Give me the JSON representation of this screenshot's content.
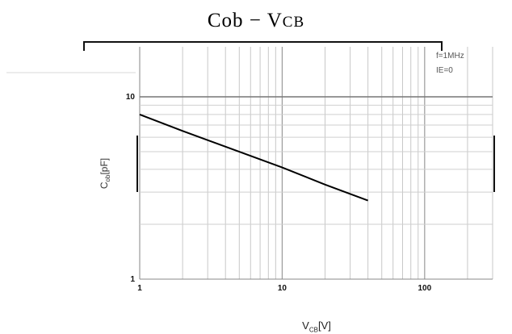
{
  "chart_data": {
    "type": "line",
    "title": "Cob",
    "title_sep": "−",
    "title_param_main": "V",
    "title_param_sub": "CB",
    "xlabel_main": "V",
    "xlabel_sub": "CB",
    "xlabel_unit": "[V]",
    "ylabel_main": "C",
    "ylabel_sub": "ob",
    "ylabel_unit": "[pF]",
    "x_scale": "log",
    "y_scale": "log",
    "xlim": [
      1,
      300
    ],
    "ylim": [
      1,
      10
    ],
    "x_ticks": [
      "1",
      "10",
      "100"
    ],
    "y_ticks": [
      "10",
      "1"
    ],
    "conditions": [
      "f=1MHz",
      "IE=0"
    ],
    "grid": true,
    "series": [
      {
        "x": [
          1,
          2,
          5,
          10,
          20,
          40
        ],
        "y": [
          8.0,
          6.5,
          5.0,
          4.1,
          3.3,
          2.7
        ]
      }
    ],
    "line_color": "#000000"
  }
}
